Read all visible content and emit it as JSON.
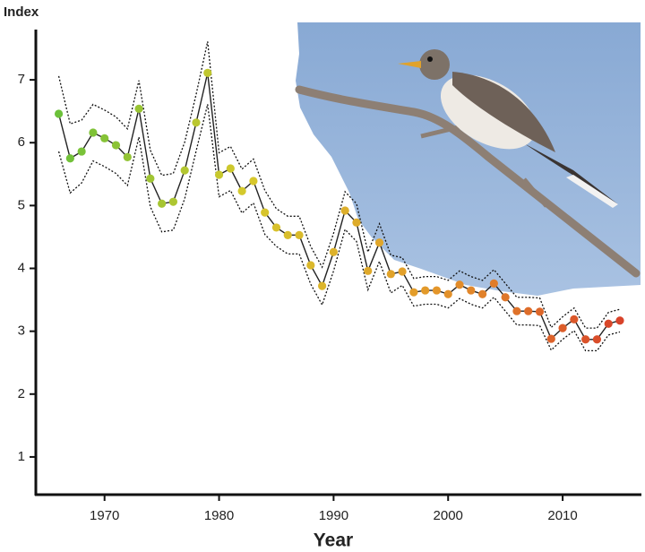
{
  "chart_data": {
    "type": "line",
    "ylabel": "Index",
    "xlabel": "Year",
    "x": [
      1966,
      1967,
      1968,
      1969,
      1970,
      1971,
      1972,
      1973,
      1974,
      1975,
      1976,
      1977,
      1978,
      1979,
      1980,
      1981,
      1982,
      1983,
      1984,
      1985,
      1986,
      1987,
      1988,
      1989,
      1990,
      1991,
      1992,
      1993,
      1994,
      1995,
      1996,
      1997,
      1998,
      1999,
      2000,
      2001,
      2002,
      2003,
      2004,
      2005,
      2006,
      2007,
      2008,
      2009,
      2010,
      2011,
      2012,
      2013,
      2014,
      2015
    ],
    "series": [
      {
        "color": "#222222",
        "point_color_scale": [
          "#6cc13a",
          "#d6c92c",
          "#e4982a",
          "#d8432a"
        ],
        "values": [
          6.46,
          5.75,
          5.86,
          6.16,
          6.07,
          5.96,
          5.77,
          6.54,
          5.43,
          5.03,
          5.06,
          5.56,
          6.32,
          7.11,
          5.49,
          5.59,
          5.23,
          5.39,
          4.89,
          4.65,
          4.53,
          4.53,
          4.05,
          3.72,
          4.26,
          4.92,
          4.73,
          3.96,
          4.41,
          3.91,
          3.95,
          3.62,
          3.65,
          3.65,
          3.59,
          3.74,
          3.65,
          3.59,
          3.76,
          3.54,
          3.32,
          3.32,
          3.31,
          2.88,
          3.05,
          3.19,
          2.87,
          2.87,
          3.12,
          3.17
        ],
        "upper": [
          7.06,
          6.3,
          6.36,
          6.61,
          6.52,
          6.41,
          6.22,
          6.99,
          5.88,
          5.48,
          5.51,
          6.01,
          6.77,
          7.61,
          5.84,
          5.94,
          5.58,
          5.74,
          5.24,
          4.95,
          4.83,
          4.83,
          4.35,
          4.02,
          4.56,
          5.22,
          5.03,
          4.26,
          4.71,
          4.21,
          4.17,
          3.84,
          3.87,
          3.87,
          3.81,
          3.96,
          3.87,
          3.81,
          3.98,
          3.76,
          3.54,
          3.54,
          3.53,
          3.06,
          3.23,
          3.37,
          3.05,
          3.05,
          3.3,
          3.35
        ],
        "lower": [
          5.86,
          5.2,
          5.36,
          5.71,
          5.62,
          5.51,
          5.32,
          6.09,
          4.98,
          4.58,
          4.61,
          5.11,
          5.87,
          6.61,
          5.14,
          5.24,
          4.88,
          5.04,
          4.54,
          4.35,
          4.23,
          4.23,
          3.75,
          3.42,
          3.96,
          4.62,
          4.43,
          3.66,
          4.11,
          3.61,
          3.73,
          3.4,
          3.43,
          3.43,
          3.37,
          3.52,
          3.43,
          3.37,
          3.54,
          3.32,
          3.1,
          3.1,
          3.09,
          2.7,
          2.87,
          3.01,
          2.69,
          2.69,
          2.94,
          2.99
        ]
      }
    ],
    "xlim": [
      1964,
      2016.8
    ],
    "xticks": [
      1970,
      1980,
      1990,
      2000,
      2010
    ],
    "ylim": [
      0.4,
      7.8
    ],
    "yticks": [
      1,
      2,
      3,
      4,
      5,
      6,
      7
    ]
  }
}
